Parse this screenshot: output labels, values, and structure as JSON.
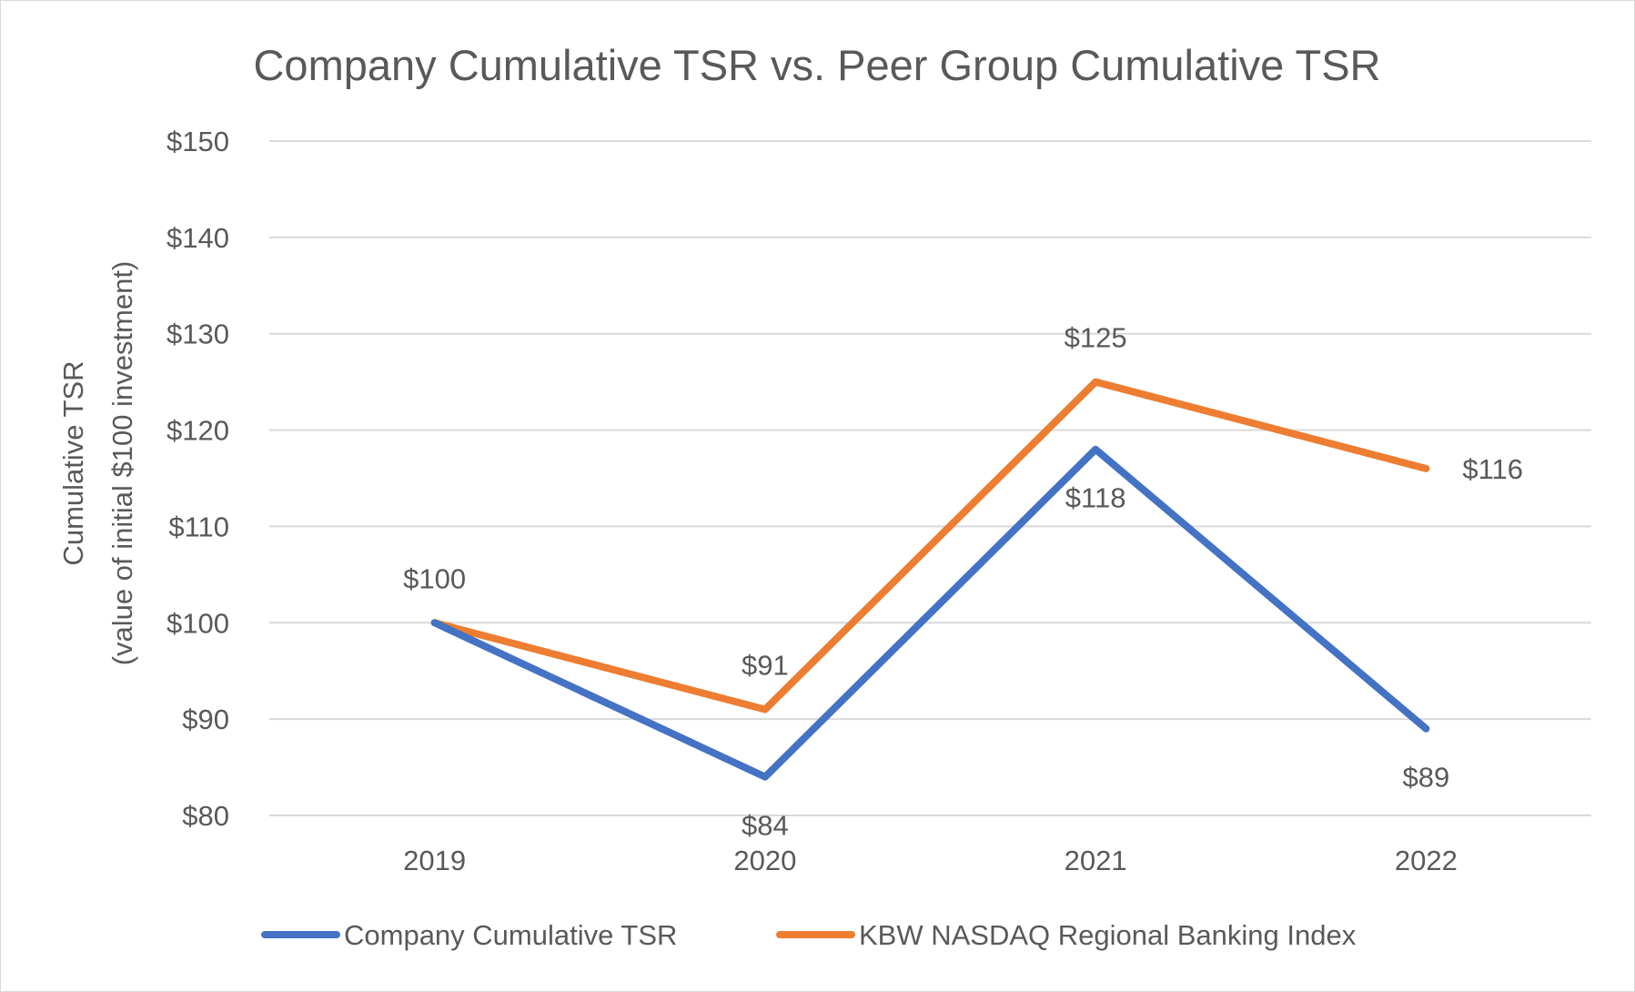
{
  "chart_data": {
    "type": "line",
    "title": "Company Cumulative TSR vs. Peer Group Cumulative TSR",
    "ylabel": [
      "Cumulative TSR",
      "(value of initial $100 investment)"
    ],
    "xlabel": "",
    "categories": [
      "2019",
      "2020",
      "2021",
      "2022"
    ],
    "ylim": [
      80,
      150
    ],
    "yticks": [
      80,
      90,
      100,
      110,
      120,
      130,
      140,
      150
    ],
    "ytick_prefix": "$",
    "grid": true,
    "legend_position": "bottom",
    "series": [
      {
        "name": "Company Cumulative TSR",
        "color": "#4472c4",
        "values": [
          100,
          84,
          118,
          89
        ],
        "labels": [
          "",
          "$84",
          "$118",
          "$89"
        ],
        "label_pos": [
          "above",
          "below",
          "below",
          "below"
        ]
      },
      {
        "name": "KBW NASDAQ Regional Banking Index",
        "color": "#ed7d31",
        "values": [
          100,
          91,
          125,
          116
        ],
        "labels": [
          "$100",
          "$91",
          "$125",
          "$116"
        ],
        "label_pos": [
          "above",
          "above",
          "above",
          "right"
        ]
      }
    ]
  }
}
